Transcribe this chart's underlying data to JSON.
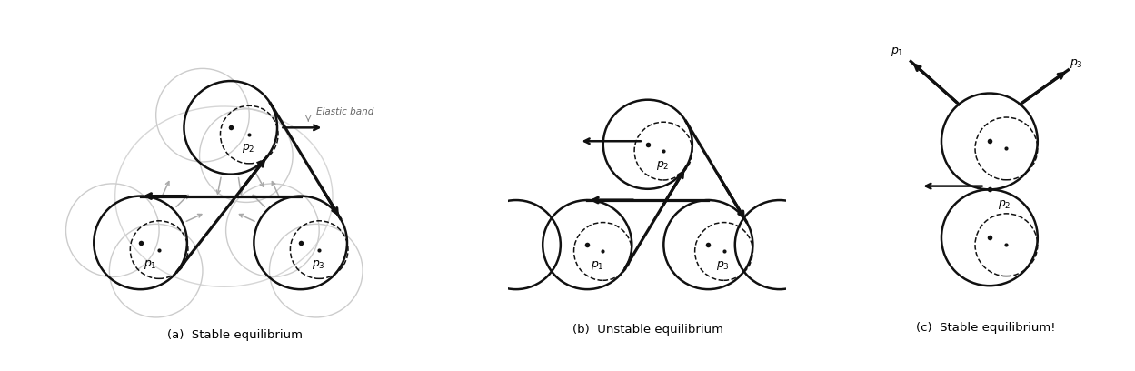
{
  "fig_width": 12.49,
  "fig_height": 4.08,
  "bg_color": "#ffffff",
  "caption_a": "(a)  Stable equilibrium",
  "caption_b": "(b)  Unstable equilibrium",
  "caption_c": "(c)  Stable equilibrium!",
  "elastic_band_label": "Elastic band",
  "gray_color": "#aaaaaa",
  "dark_color": "#111111",
  "light_gray": "#cccccc"
}
